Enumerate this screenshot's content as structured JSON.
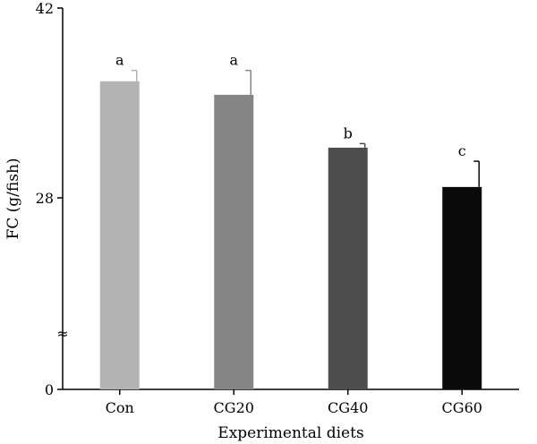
{
  "chart_data": {
    "type": "bar",
    "title": "",
    "xlabel": "Experimental diets",
    "ylabel": "FC (g/fish)",
    "categories": [
      "Con",
      "CG20",
      "CG40",
      "CG60"
    ],
    "values": [
      36.6,
      35.6,
      31.7,
      28.8
    ],
    "errors": [
      0.8,
      1.8,
      0.3,
      1.9
    ],
    "significance": [
      "a",
      "a",
      "b",
      "c"
    ],
    "bar_colors": [
      "#b3b3b3",
      "#858585",
      "#4d4d4d",
      "#0a0a0a"
    ],
    "y_axis": {
      "broken": true,
      "break_symbol": "≈",
      "ticks": [
        0,
        28,
        42
      ],
      "ylim_lower_segment": [
        0,
        0
      ],
      "ylim_upper_segment": [
        28,
        42
      ]
    },
    "grid": false,
    "legend": "none"
  }
}
